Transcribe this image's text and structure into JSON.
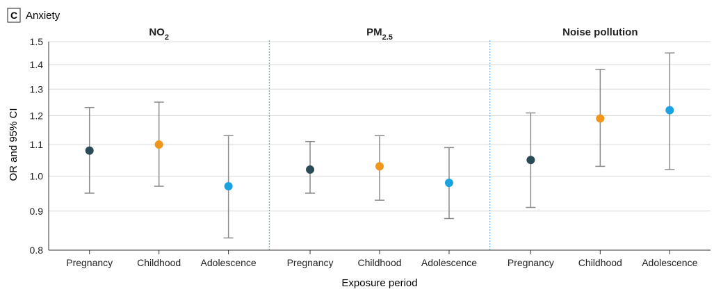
{
  "chart_data": {
    "type": "scatter",
    "panel_label": "C",
    "title": "Anxiety",
    "xlabel": "Exposure period",
    "ylabel": "OR and 95% CI",
    "y_scale": "log",
    "ylim": [
      0.8,
      1.5
    ],
    "yticks": [
      0.8,
      0.9,
      1.0,
      1.1,
      1.2,
      1.3,
      1.4,
      1.5
    ],
    "ytick_labels": [
      "0.8",
      "0.9",
      "1.0",
      "1.1",
      "1.2",
      "1.3",
      "1.4",
      "1.5"
    ],
    "grid": "horizontal",
    "categories": [
      "Pregnancy",
      "Childhood",
      "Adolescence"
    ],
    "category_colors": [
      "#2a4a57",
      "#f0961d",
      "#1aa3e0"
    ],
    "groups": [
      {
        "name": "NO",
        "name_sub": "2",
        "points": [
          {
            "category": "Pregnancy",
            "or": 1.08,
            "lo": 0.95,
            "hi": 1.23
          },
          {
            "category": "Childhood",
            "or": 1.1,
            "lo": 0.97,
            "hi": 1.25
          },
          {
            "category": "Adolescence",
            "or": 0.97,
            "lo": 0.83,
            "hi": 1.13
          }
        ]
      },
      {
        "name": "PM",
        "name_sub": "2.5",
        "points": [
          {
            "category": "Pregnancy",
            "or": 1.02,
            "lo": 0.95,
            "hi": 1.11
          },
          {
            "category": "Childhood",
            "or": 1.03,
            "lo": 0.93,
            "hi": 1.13
          },
          {
            "category": "Adolescence",
            "or": 0.98,
            "lo": 0.88,
            "hi": 1.09
          }
        ]
      },
      {
        "name": "Noise pollution",
        "name_sub": "",
        "points": [
          {
            "category": "Pregnancy",
            "or": 1.05,
            "lo": 0.91,
            "hi": 1.21
          },
          {
            "category": "Childhood",
            "or": 1.19,
            "lo": 1.03,
            "hi": 1.38
          },
          {
            "category": "Adolescence",
            "or": 1.22,
            "lo": 1.02,
            "hi": 1.45
          }
        ]
      }
    ]
  }
}
